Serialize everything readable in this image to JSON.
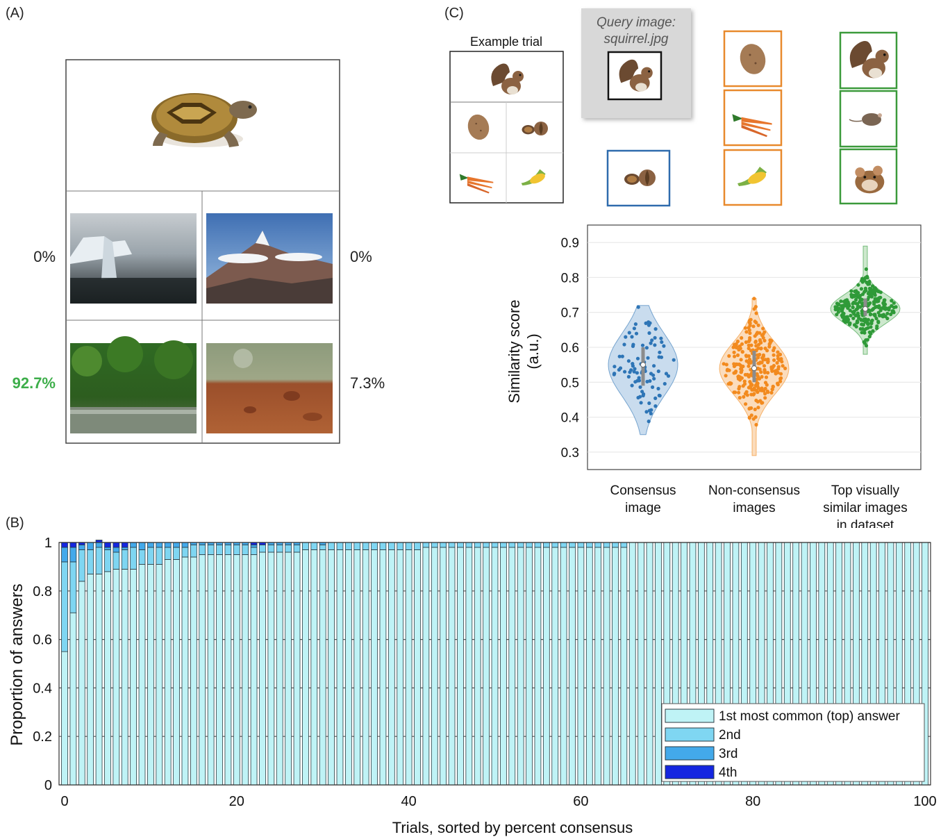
{
  "panel_labels": {
    "a": "(A)",
    "b": "(B)",
    "c": "(C)"
  },
  "panel_a": {
    "percentages": {
      "top_left": "0%",
      "top_right": "0%",
      "bottom_left": "92.7%",
      "bottom_right": "7.3%"
    },
    "highlight_color": "#3dae4a",
    "query_image": "tortoise",
    "choices": [
      "iceberg",
      "mountain",
      "forest river",
      "mars landscape"
    ]
  },
  "panel_c_top": {
    "example_trial_label": "Example trial",
    "query_caption_line1": "Query image:",
    "query_caption_line2": "squirrel.jpg",
    "consensus_color": "#2e6bad",
    "nonconsensus_color": "#e8892c",
    "similar_color": "#3b9a3b",
    "query_item": "squirrel",
    "consensus_item": "walnuts",
    "nonconsensus_items": [
      "potato",
      "carrots",
      "corn"
    ],
    "similar_items": [
      "squirrel",
      "mouse",
      "hamster"
    ]
  },
  "chart_data": [
    {
      "type": "bar",
      "stacked": true,
      "xlabel": "Trials, sorted by percent consensus",
      "ylabel": "Proportion of answers",
      "xlim": [
        0,
        100
      ],
      "ylim": [
        0,
        1
      ],
      "xticks": [
        "0",
        "20",
        "40",
        "60",
        "80",
        "100"
      ],
      "yticks": [
        "0",
        "0.2",
        "0.4",
        "0.6",
        "0.8",
        "1"
      ],
      "grid": true,
      "legend_position": "bottom-right",
      "series": [
        {
          "name": "1st most common (top) answer",
          "color": "#bff3f6",
          "values": [
            0.55,
            0.71,
            0.84,
            0.87,
            0.87,
            0.88,
            0.89,
            0.89,
            0.89,
            0.91,
            0.91,
            0.91,
            0.93,
            0.93,
            0.94,
            0.94,
            0.95,
            0.95,
            0.95,
            0.95,
            0.95,
            0.95,
            0.95,
            0.96,
            0.96,
            0.96,
            0.96,
            0.96,
            0.97,
            0.97,
            0.97,
            0.97,
            0.97,
            0.97,
            0.97,
            0.97,
            0.97,
            0.97,
            0.97,
            0.97,
            0.97,
            0.97,
            0.98,
            0.98,
            0.98,
            0.98,
            0.98,
            0.98,
            0.98,
            0.98,
            0.98,
            0.98,
            0.98,
            0.98,
            0.98,
            0.98,
            0.98,
            0.98,
            0.98,
            0.98,
            0.98,
            0.98,
            0.98,
            0.98,
            0.98,
            0.98,
            1,
            1,
            1,
            1,
            1,
            1,
            1,
            1,
            1,
            1,
            1,
            1,
            1,
            1,
            1,
            1,
            1,
            1,
            1,
            1,
            1,
            1,
            1,
            1,
            1,
            1,
            1,
            1,
            1,
            1,
            1,
            1,
            1,
            1,
            1
          ]
        },
        {
          "name": "2nd",
          "color": "#7fd6f2",
          "values": [
            0.37,
            0.21,
            0.13,
            0.1,
            0.11,
            0.09,
            0.07,
            0.08,
            0.09,
            0.06,
            0.07,
            0.07,
            0.05,
            0.05,
            0.04,
            0.05,
            0.04,
            0.04,
            0.04,
            0.04,
            0.04,
            0.04,
            0.03,
            0.03,
            0.03,
            0.03,
            0.03,
            0.03,
            0.03,
            0.03,
            0.02,
            0.03,
            0.03,
            0.03,
            0.03,
            0.03,
            0.03,
            0.03,
            0.03,
            0.03,
            0.03,
            0.03,
            0.02,
            0.02,
            0.02,
            0.02,
            0.02,
            0.02,
            0.02,
            0.02,
            0.02,
            0.02,
            0.02,
            0.02,
            0.02,
            0.02,
            0.02,
            0.02,
            0.02,
            0.02,
            0.02,
            0.02,
            0.02,
            0.02,
            0.02,
            0.02,
            0,
            0,
            0,
            0,
            0,
            0,
            0,
            0,
            0,
            0,
            0,
            0,
            0,
            0,
            0,
            0,
            0,
            0,
            0,
            0,
            0,
            0,
            0,
            0,
            0,
            0,
            0,
            0,
            0,
            0,
            0,
            0,
            0,
            0,
            0
          ]
        },
        {
          "name": "3rd",
          "color": "#43a9ea",
          "values": [
            0.06,
            0.06,
            0.02,
            0.03,
            0.02,
            0.01,
            0.02,
            0.01,
            0.02,
            0.03,
            0.02,
            0.02,
            0.02,
            0.02,
            0.02,
            0.01,
            0.01,
            0.01,
            0.01,
            0.01,
            0.01,
            0.01,
            0.01,
            0,
            0.01,
            0.01,
            0.01,
            0.01,
            0,
            0,
            0.01,
            0,
            0,
            0,
            0,
            0,
            0,
            0,
            0,
            0,
            0,
            0,
            0,
            0,
            0,
            0,
            0,
            0,
            0,
            0,
            0,
            0,
            0,
            0,
            0,
            0,
            0,
            0,
            0,
            0,
            0,
            0,
            0,
            0,
            0,
            0,
            0,
            0,
            0,
            0,
            0,
            0,
            0,
            0,
            0,
            0,
            0,
            0,
            0,
            0,
            0,
            0,
            0,
            0,
            0,
            0,
            0,
            0,
            0,
            0,
            0,
            0,
            0,
            0,
            0,
            0,
            0,
            0,
            0,
            0,
            0
          ]
        },
        {
          "name": "4th",
          "color": "#1426e0",
          "values": [
            0.02,
            0.02,
            0.01,
            0,
            0.01,
            0.02,
            0.02,
            0.02,
            0,
            0,
            0,
            0,
            0,
            0,
            0,
            0,
            0,
            0,
            0,
            0,
            0,
            0,
            0.01,
            0.01,
            0,
            0,
            0,
            0,
            0,
            0,
            0,
            0,
            0,
            0,
            0,
            0,
            0,
            0,
            0,
            0,
            0,
            0,
            0,
            0,
            0,
            0,
            0,
            0,
            0,
            0,
            0,
            0,
            0,
            0,
            0,
            0,
            0,
            0,
            0,
            0,
            0,
            0,
            0,
            0,
            0,
            0,
            0,
            0,
            0,
            0,
            0,
            0,
            0,
            0,
            0,
            0,
            0,
            0,
            0,
            0,
            0,
            0,
            0,
            0,
            0,
            0,
            0,
            0,
            0,
            0,
            0,
            0,
            0,
            0,
            0,
            0,
            0,
            0,
            0,
            0,
            0
          ]
        }
      ]
    },
    {
      "type": "violin",
      "ylabel_line1": "Similarity score",
      "ylabel_line2": "(a.u.)",
      "ylim": [
        0.25,
        0.95
      ],
      "yticks": [
        "0.3",
        "0.4",
        "0.5",
        "0.6",
        "0.7",
        "0.8",
        "0.9"
      ],
      "grid": true,
      "categories": [
        {
          "label_lines": [
            "Consensus",
            "image"
          ],
          "color": "#2e75b6",
          "fill": "#c9dcee",
          "median": 0.55,
          "q1": 0.49,
          "q3": 0.6,
          "min": 0.35,
          "max": 0.72,
          "n": 90
        },
        {
          "label_lines": [
            "Non-consensus",
            "images"
          ],
          "color": "#f28a1e",
          "fill": "#fbdcbc",
          "median": 0.54,
          "q1": 0.5,
          "q3": 0.59,
          "min": 0.29,
          "max": 0.74,
          "n": 270
        },
        {
          "label_lines": [
            "Top visually",
            "similar images",
            "in dataset"
          ],
          "color": "#2f9a38",
          "fill": "#cde8cd",
          "median": 0.71,
          "q1": 0.69,
          "q3": 0.74,
          "min": 0.58,
          "max": 0.89,
          "n": 270
        }
      ]
    }
  ]
}
